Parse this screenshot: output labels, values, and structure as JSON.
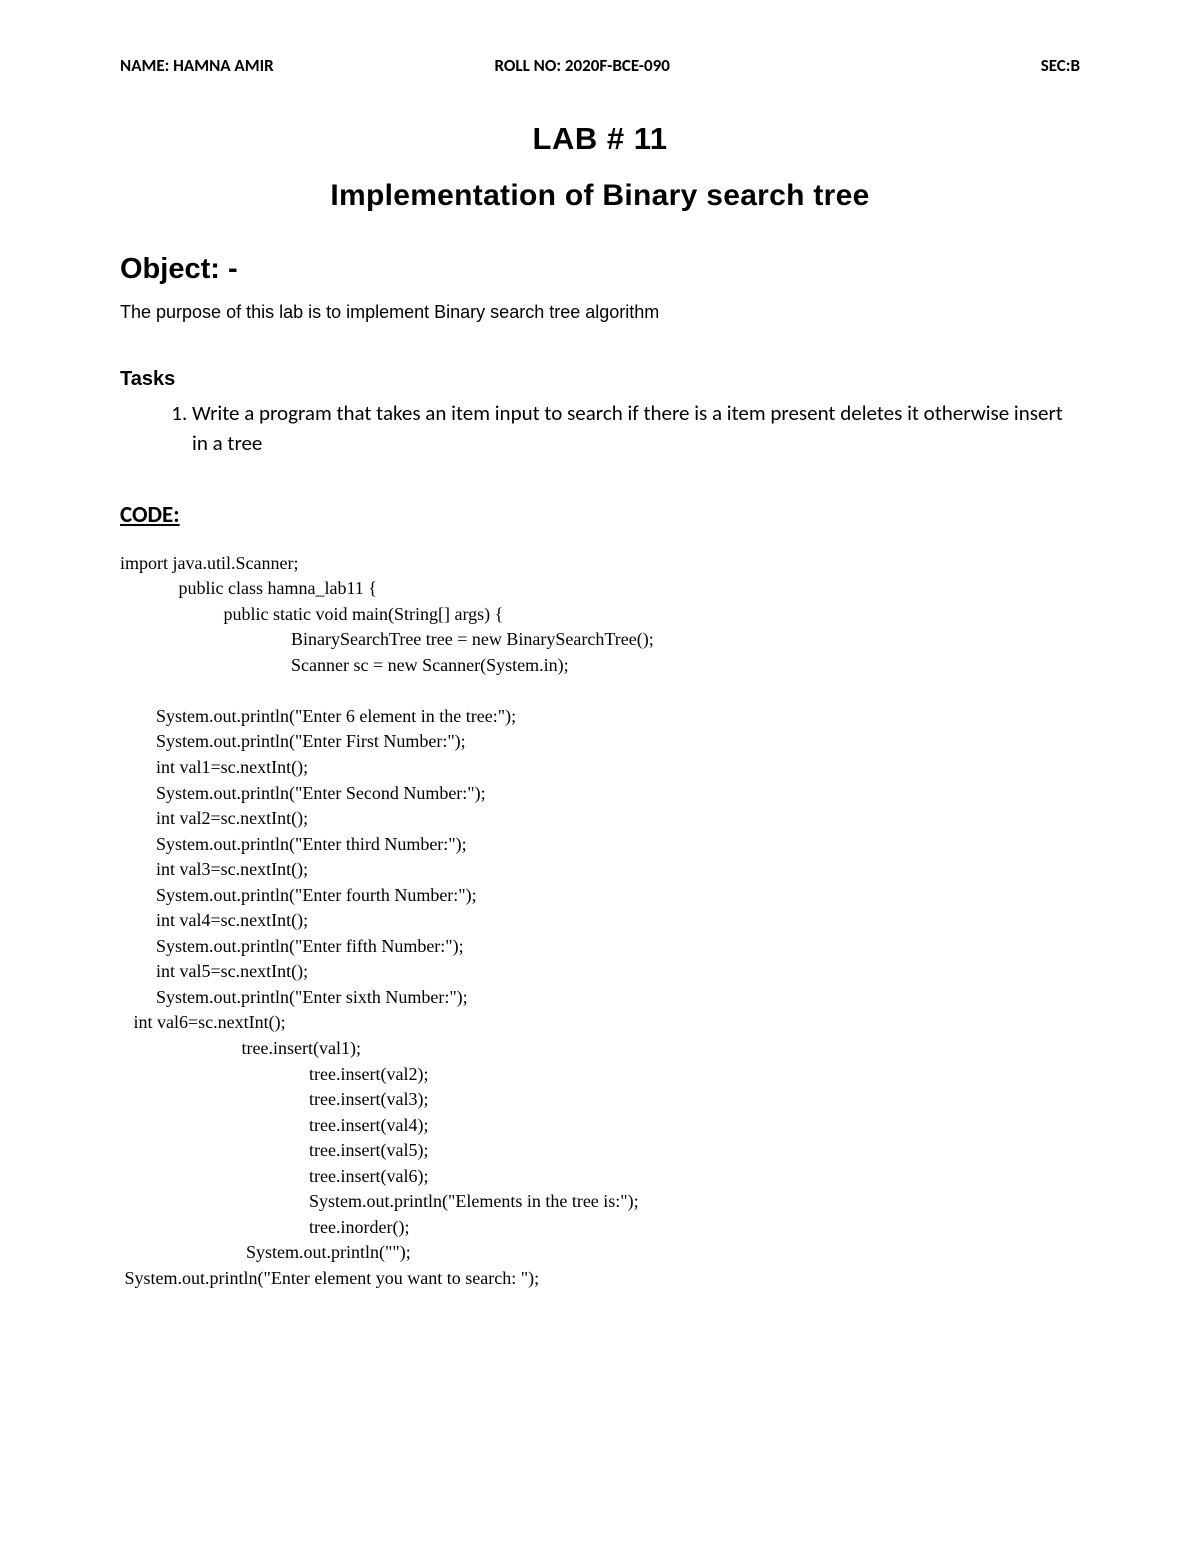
{
  "header": {
    "name_label": "NAME: HAMNA AMIR",
    "roll_label": "ROLL NO: 2020F-BCE-090",
    "sec_label": "SEC:B"
  },
  "title": {
    "lab_number": "LAB # 11",
    "lab_subtitle": "Implementation of Binary search tree"
  },
  "object": {
    "heading": "Object: -",
    "text": "The purpose of this lab is to implement Binary search tree algorithm"
  },
  "tasks": {
    "heading": "Tasks",
    "items": [
      "Write a program that takes an item input to search if there is a item present deletes it otherwise insert in a tree"
    ]
  },
  "code": {
    "heading": "CODE:",
    "content": "import java.util.Scanner;\n             public class hamna_lab11 {\n                       public static void main(String[] args) {\n                                      BinarySearchTree tree = new BinarySearchTree();\n                                      Scanner sc = new Scanner(System.in);\n\n        System.out.println(\"Enter 6 element in the tree:\");\n        System.out.println(\"Enter First Number:\");\n        int val1=sc.nextInt();\n        System.out.println(\"Enter Second Number:\");\n        int val2=sc.nextInt();\n        System.out.println(\"Enter third Number:\");\n        int val3=sc.nextInt();\n        System.out.println(\"Enter fourth Number:\");\n        int val4=sc.nextInt();\n        System.out.println(\"Enter fifth Number:\");\n        int val5=sc.nextInt();\n        System.out.println(\"Enter sixth Number:\");\n   int val6=sc.nextInt();\n                           tree.insert(val1);\n                                          tree.insert(val2);\n                                          tree.insert(val3);\n                                          tree.insert(val4);\n                                          tree.insert(val5);\n                                          tree.insert(val6);\n                                          System.out.println(\"Elements in the tree is:\");\n                                          tree.inorder();\n                            System.out.println(\"\");\n System.out.println(\"Enter element you want to search: \");"
  },
  "styles": {
    "background_color": "#ffffff",
    "text_color": "#000000",
    "header_fontsize": 17,
    "title_fontsize": 31,
    "subtitle_fontsize": 30,
    "object_heading_fontsize": 29,
    "body_fontsize": 18,
    "tasks_heading_fontsize": 20,
    "tasks_item_fontsize": 21,
    "code_heading_fontsize": 23,
    "code_fontsize": 18
  }
}
